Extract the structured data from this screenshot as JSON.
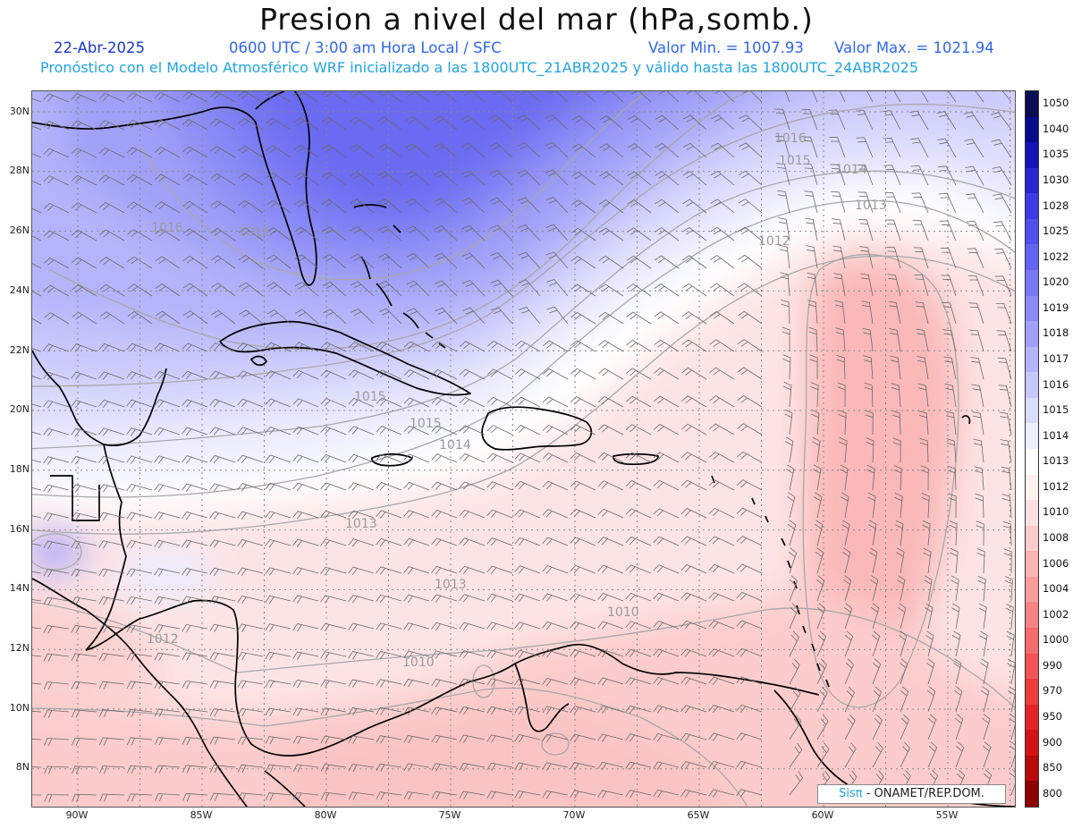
{
  "header": {
    "title": "Presion a nivel del mar (hPa,somb.)",
    "date": "22-Abr-2025",
    "time": "0600 UTC / 3:00 am Hora Local / SFC",
    "min_label": "Valor Min. = 1007.93",
    "max_label": "Valor Max. = 1021.94",
    "model_line": "Pronóstico con el Modelo Atmosférico WRF inicializado a las 1800UTC_21ABR2025 y válido hasta las  1800UTC_24ABR2025"
  },
  "colors": {
    "title": "#111111",
    "date": "#1538d6",
    "info": "#2f67f0",
    "model_line": "#1ea4e4",
    "land_outline": "#000000",
    "contour": "#a8a8a8",
    "barb": "#6a6a6a"
  },
  "axes": {
    "lat_labels": [
      "30N",
      "28N",
      "26N",
      "24N",
      "22N",
      "20N",
      "18N",
      "16N",
      "14N",
      "12N",
      "10N",
      "8N"
    ],
    "lon_labels": [
      "90W",
      "85W",
      "80W",
      "75W",
      "70W",
      "65W",
      "60W",
      "55W"
    ]
  },
  "contour_labels": [
    "1016",
    "1015",
    "1014",
    "1013",
    "1012",
    "1016",
    "1015",
    "1014",
    "1013",
    "1013",
    "1012",
    "1010",
    "1010",
    "1016",
    "1015"
  ],
  "colorbar": {
    "labels": [
      "1050",
      "1040",
      "1035",
      "1030",
      "1028",
      "1025",
      "1022",
      "1020",
      "1019",
      "1018",
      "1017",
      "1016",
      "1015",
      "1014",
      "1013",
      "1012",
      "1010",
      "1008",
      "1006",
      "1004",
      "1002",
      "1000",
      "990",
      "970",
      "950",
      "900",
      "850",
      "800"
    ],
    "colors": [
      "#0c0c55",
      "#0a0a8c",
      "#1414b4",
      "#2828d2",
      "#3c3ce6",
      "#5050ee",
      "#6464f2",
      "#7878f4",
      "#8c8cf6",
      "#a0a0f8",
      "#b4b4fa",
      "#c8c8fc",
      "#dcdcfd",
      "#eeeeff",
      "#ffffff",
      "#fff0f0",
      "#fde0e0",
      "#fccccc",
      "#fab4b4",
      "#f89c9c",
      "#f68484",
      "#f46c6c",
      "#f05454",
      "#ec3c3c",
      "#e42424",
      "#d41414",
      "#b80a0a",
      "#8c0000"
    ]
  },
  "credit": {
    "logo": "Sisπ",
    "text": " - ONAMET/REP.DOM."
  }
}
